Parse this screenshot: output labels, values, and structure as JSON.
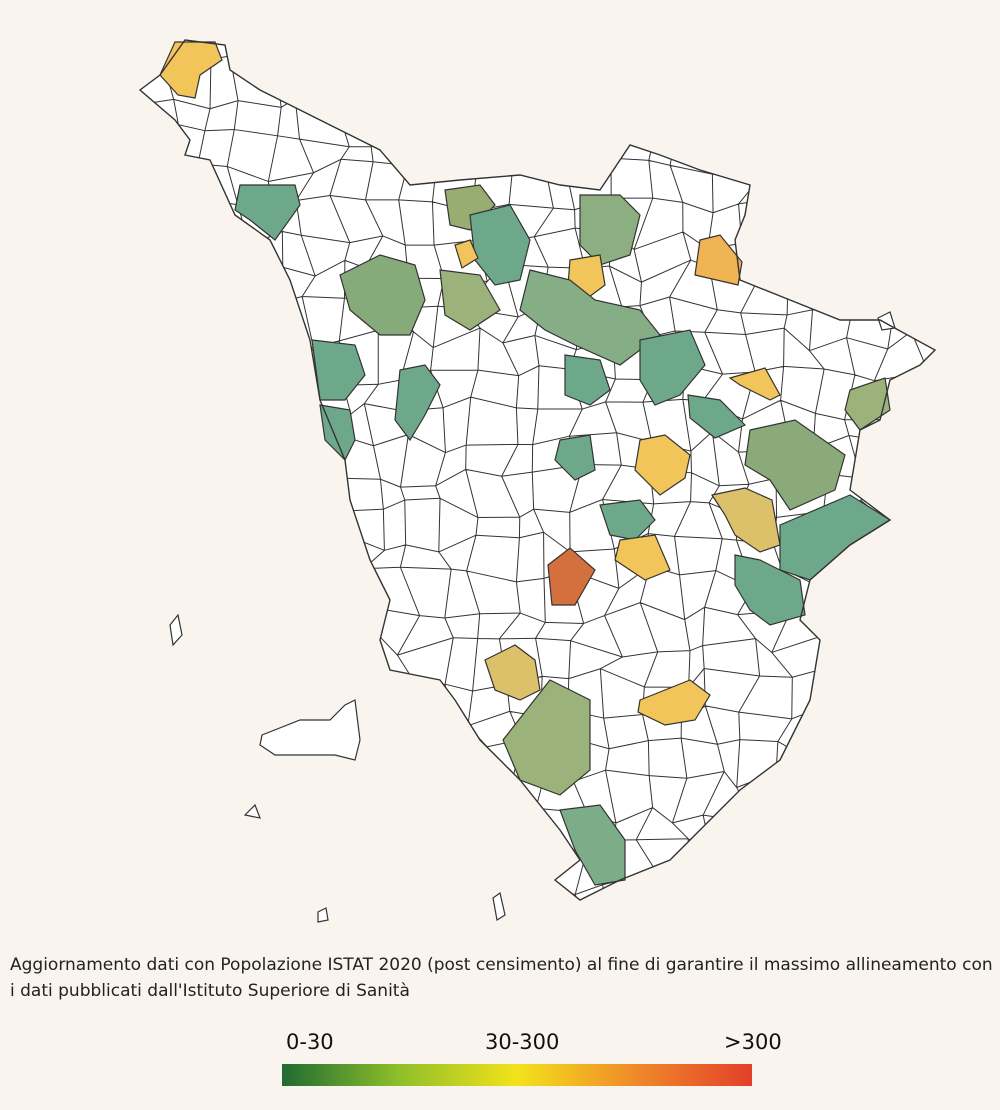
{
  "note": "Aggiornamento dati con Popolazione ISTAT 2020 (post censimento) al fine di garantire il massimo allineamento con i dati pubblicati dall'Istituto Superiore di Sanità",
  "legend": {
    "labels": [
      "0-30",
      "30-300",
      ">300"
    ],
    "colors": [
      "#1f6b33",
      "#8fbf2a",
      "#f3e21a",
      "#f08a2a",
      "#e3402a"
    ]
  }
}
